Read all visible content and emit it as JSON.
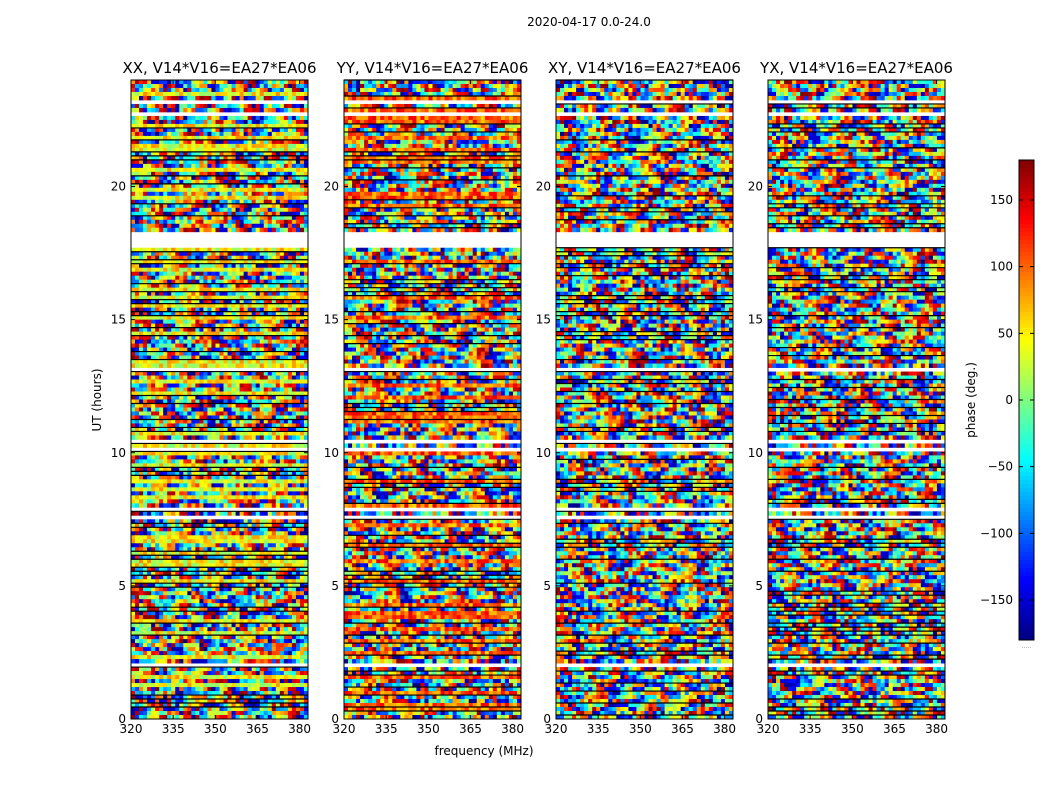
{
  "chart_data": {
    "type": "heatmap",
    "suptitle": "2020-04-17 0.0-24.0",
    "xlabel": "frequency (MHz)",
    "ylabel": "UT (hours)",
    "xlim": [
      320,
      383
    ],
    "ylim": [
      0,
      24
    ],
    "xticks": [
      320,
      335,
      350,
      365,
      380
    ],
    "yticks": [
      0,
      5,
      10,
      15,
      20
    ],
    "colormap": "jet",
    "colorbar": {
      "label": "phase (deg.)",
      "range": [
        -180,
        180
      ],
      "ticks": [
        150,
        100,
        50,
        0,
        -50,
        -100,
        -150
      ],
      "tick_labels": [
        "150",
        "100",
        "50",
        "0",
        "−50",
        "−100",
        "−150"
      ],
      "footer": "....."
    },
    "panels": [
      {
        "title": "XX, V14*V16=EA27*EA06",
        "pol": "XX"
      },
      {
        "title": "YY, V14*V16=EA27*EA06",
        "pol": "YY"
      },
      {
        "title": "XY, V14*V16=EA27*EA06",
        "pol": "XY"
      },
      {
        "title": "YX, V14*V16=EA27*EA06",
        "pol": "YX"
      }
    ],
    "flagged_hours": [
      [
        1.95,
        2.05
      ],
      [
        7.55,
        7.7
      ],
      [
        7.85,
        8.0
      ],
      [
        10.05,
        10.15
      ],
      [
        10.35,
        10.5
      ],
      [
        13.08,
        13.18
      ],
      [
        17.75,
        18.25
      ],
      [
        22.6,
        22.8
      ],
      [
        23.1,
        23.25
      ]
    ]
  }
}
